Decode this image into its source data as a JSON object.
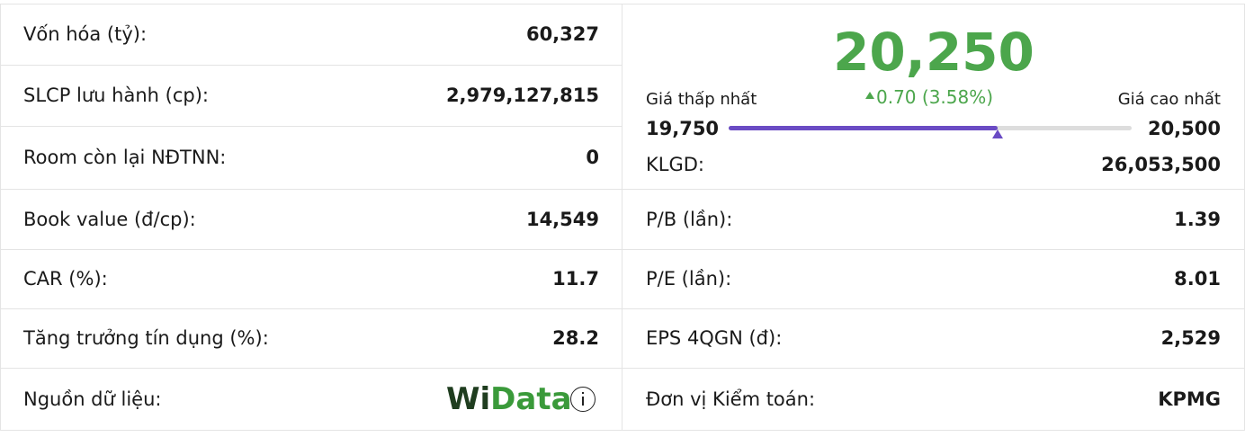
{
  "left": {
    "rows": [
      {
        "label": "Vốn hóa (tỷ):",
        "value": "60,327"
      },
      {
        "label": "SLCP lưu hành (cp):",
        "value": "2,979,127,815"
      },
      {
        "label": "Room còn lại NĐTNN:",
        "value": "0"
      },
      {
        "label": "Book value (đ/cp):",
        "value": "14,549"
      },
      {
        "label": "CAR (%):",
        "value": "11.7"
      },
      {
        "label": "Tăng trưởng tín dụng (%):",
        "value": "28.2"
      }
    ],
    "source": {
      "label": "Nguồn dữ liệu:",
      "logo_mark": "Wi",
      "logo_name": "Data"
    }
  },
  "quote": {
    "price": "20,250",
    "change": "0.70 (3.58%)",
    "low_label": "Giá thấp nhất",
    "low": "19,750",
    "high_label": "Giá cao nhất",
    "high": "20,500"
  },
  "right": {
    "rows": [
      {
        "label": "KLGD:",
        "value": "26,053,500"
      },
      {
        "label": "P/B (lần):",
        "value": "1.39"
      },
      {
        "label": "P/E (lần):",
        "value": "8.01"
      },
      {
        "label": "EPS 4QGN (đ):",
        "value": "2,529"
      },
      {
        "label": "Đơn vị Kiểm toán:",
        "value": "KPMG"
      }
    ]
  }
}
